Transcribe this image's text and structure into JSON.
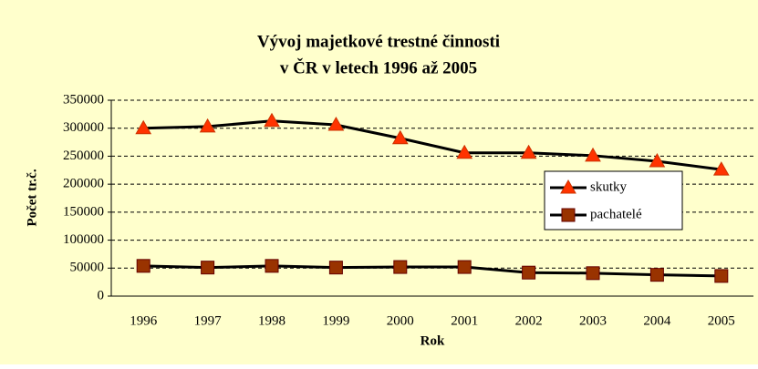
{
  "chart_data": {
    "type": "line",
    "title": [
      "Vývoj majetkové trestné činnosti",
      "v ČR v letech 1996 až 2005"
    ],
    "x_label": "Rok",
    "y_label": "Počet tr.č.",
    "categories": [
      "1996",
      "1997",
      "1998",
      "1999",
      "2000",
      "2001",
      "2002",
      "2003",
      "2004",
      "2005"
    ],
    "series": [
      {
        "name": "skutky",
        "color": "#000000",
        "marker": "triangle",
        "marker_color": "#ff3300",
        "values": [
          300000,
          303000,
          313000,
          306000,
          282000,
          256000,
          256000,
          251000,
          241000,
          226000
        ]
      },
      {
        "name": "pachatelé",
        "color": "#000000",
        "marker": "square",
        "marker_color": "#993300",
        "values": [
          54000,
          51000,
          54000,
          51000,
          52000,
          52000,
          42000,
          41000,
          38000,
          36000
        ]
      }
    ],
    "ylim": [
      0,
      350000
    ],
    "yticks": [
      0,
      50000,
      100000,
      150000,
      200000,
      250000,
      300000,
      350000
    ],
    "grid": true,
    "legend": "right"
  }
}
